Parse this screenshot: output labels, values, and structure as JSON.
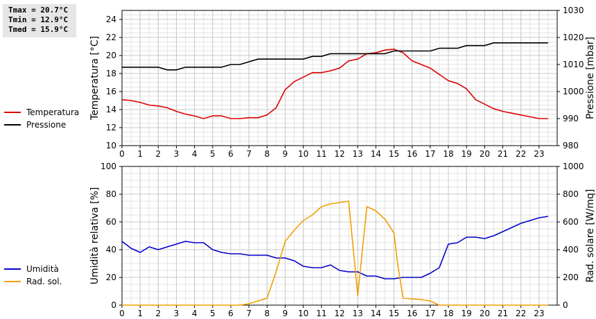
{
  "stats": {
    "tmax": "Tmax = 20.7°C",
    "tmin": "Tmin = 12.9°C",
    "tmed": "Tmed = 15.9°C"
  },
  "chart_data": [
    {
      "type": "line",
      "xlim": [
        0,
        24
      ],
      "x_ticks": [
        "0",
        "1",
        "2",
        "3",
        "4",
        "5",
        "6",
        "7",
        "8",
        "9",
        "10",
        "11",
        "12",
        "13",
        "14",
        "15",
        "16",
        "17",
        "18",
        "19",
        "20",
        "21",
        "22",
        "23"
      ],
      "ylabel": "Temperatura [°C]",
      "ylim": [
        10,
        25
      ],
      "y_ticks": [
        "10",
        "12",
        "14",
        "16",
        "18",
        "20",
        "22",
        "24"
      ],
      "y2label": "Pressione [mbar]",
      "y2lim": [
        980,
        1030
      ],
      "y2_ticks": [
        "980",
        "990",
        "1000",
        "1010",
        "1020",
        "1030"
      ],
      "grid": true,
      "legend_position": "left",
      "series": [
        {
          "name": "Temperatura",
          "color": "#dd0000",
          "axis": "left",
          "x": [
            0,
            0.5,
            1,
            1.5,
            2,
            2.5,
            3,
            3.5,
            4,
            4.5,
            5,
            5.5,
            6,
            6.5,
            7,
            7.5,
            8,
            8.5,
            9,
            9.5,
            10,
            10.5,
            11,
            11.5,
            12,
            12.5,
            13,
            13.5,
            14,
            14.5,
            15,
            15.5,
            16,
            16.5,
            17,
            17.5,
            18,
            18.5,
            19,
            19.5,
            20,
            20.5,
            21,
            21.5,
            22,
            22.5,
            23,
            23.5
          ],
          "values": [
            15.1,
            15.0,
            14.8,
            14.5,
            14.4,
            14.2,
            13.8,
            13.5,
            13.3,
            13.0,
            13.3,
            13.3,
            13.0,
            13.0,
            13.1,
            13.1,
            13.4,
            14.2,
            16.2,
            17.1,
            17.6,
            18.1,
            18.1,
            18.3,
            18.6,
            19.4,
            19.6,
            20.2,
            20.3,
            20.6,
            20.7,
            20.3,
            19.4,
            19.0,
            18.6,
            17.9,
            17.2,
            16.9,
            16.3,
            15.1,
            14.6,
            14.1,
            13.8,
            13.6,
            13.4,
            13.2,
            13.0,
            13.0
          ]
        },
        {
          "name": "Pressione",
          "color": "#000000",
          "axis": "right",
          "x": [
            0,
            0.5,
            1,
            1.5,
            2,
            2.5,
            3,
            3.5,
            4,
            4.5,
            5,
            5.5,
            6,
            6.5,
            7,
            7.5,
            8,
            8.5,
            9,
            9.5,
            10,
            10.5,
            11,
            11.5,
            12,
            12.5,
            13,
            13.5,
            14,
            14.5,
            15,
            15.5,
            16,
            16.5,
            17,
            17.5,
            18,
            18.5,
            19,
            19.5,
            20,
            20.5,
            21,
            21.5,
            22,
            22.5,
            23,
            23.5
          ],
          "values": [
            1009,
            1009,
            1009,
            1009,
            1009,
            1008,
            1008,
            1009,
            1009,
            1009,
            1009,
            1009,
            1010,
            1010,
            1011,
            1012,
            1012,
            1012,
            1012,
            1012,
            1012,
            1013,
            1013,
            1014,
            1014,
            1014,
            1014,
            1014,
            1014,
            1014,
            1015,
            1015,
            1015,
            1015,
            1015,
            1016,
            1016,
            1016,
            1017,
            1017,
            1017,
            1018,
            1018,
            1018,
            1018,
            1018,
            1018,
            1018
          ]
        }
      ]
    },
    {
      "type": "line",
      "xlim": [
        0,
        24
      ],
      "x_ticks": [
        "0",
        "1",
        "2",
        "3",
        "4",
        "5",
        "6",
        "7",
        "8",
        "9",
        "10",
        "11",
        "12",
        "13",
        "14",
        "15",
        "16",
        "17",
        "18",
        "19",
        "20",
        "21",
        "22",
        "23"
      ],
      "ylabel": "Umidità relativa [%]",
      "ylim": [
        0,
        100
      ],
      "y_ticks": [
        "0",
        "20",
        "40",
        "60",
        "80",
        "100"
      ],
      "y2label": "Rad. solare [W/mq]",
      "y2lim": [
        0,
        1000
      ],
      "y2_ticks": [
        "0",
        "200",
        "400",
        "600",
        "800",
        "1000"
      ],
      "grid": true,
      "legend_position": "left",
      "series": [
        {
          "name": "Umidità",
          "color": "#0000cc",
          "axis": "left",
          "x": [
            0,
            0.5,
            1,
            1.5,
            2,
            2.5,
            3,
            3.5,
            4,
            4.5,
            5,
            5.5,
            6,
            6.5,
            7,
            7.5,
            8,
            8.5,
            9,
            9.5,
            10,
            10.5,
            11,
            11.5,
            12,
            12.5,
            13,
            13.5,
            14,
            14.5,
            15,
            15.5,
            16,
            16.5,
            17,
            17.5,
            18,
            18.5,
            19,
            19.5,
            20,
            20.5,
            21,
            21.5,
            22,
            22.5,
            23,
            23.5
          ],
          "values": [
            46,
            41,
            38,
            42,
            40,
            42,
            44,
            46,
            45,
            45,
            40,
            38,
            37,
            37,
            36,
            36,
            36,
            34,
            34,
            32,
            28,
            27,
            27,
            29,
            25,
            24,
            24,
            21,
            21,
            19,
            19,
            20,
            20,
            20,
            23,
            27,
            44,
            45,
            49,
            49,
            48,
            50,
            53,
            56,
            59,
            61,
            63,
            64
          ]
        },
        {
          "name": "Rad. sol.",
          "color": "#f0a000",
          "axis": "right",
          "x": [
            0,
            1,
            2,
            3,
            4,
            5,
            6,
            6.5,
            7,
            7.5,
            8,
            8.5,
            9,
            9.5,
            10,
            10.5,
            11,
            11.5,
            12,
            12.5,
            13,
            13.5,
            14,
            14.5,
            15,
            15.2,
            15.5,
            16,
            16.5,
            17,
            17.5,
            18,
            19,
            20,
            21,
            22,
            23,
            23.5
          ],
          "values": [
            0,
            0,
            0,
            0,
            0,
            0,
            0,
            0,
            10,
            30,
            50,
            240,
            460,
            540,
            610,
            650,
            710,
            730,
            740,
            750,
            70,
            710,
            680,
            620,
            520,
            300,
            50,
            45,
            40,
            30,
            0,
            0,
            0,
            0,
            0,
            0,
            0,
            0
          ]
        }
      ]
    }
  ]
}
